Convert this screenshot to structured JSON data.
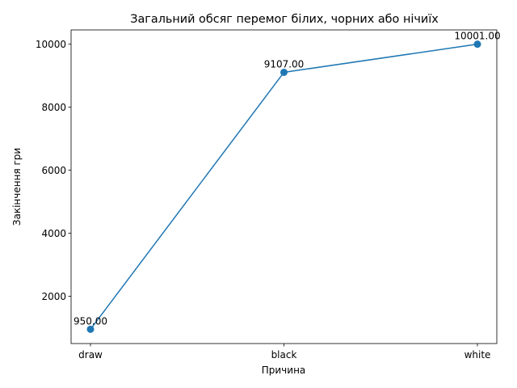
{
  "chart_data": {
    "type": "line",
    "title": "Загальний обсяг перемог білих, чорних або нічиїх",
    "xlabel": "Причина",
    "ylabel": "Закінчення гри",
    "categories": [
      "draw",
      "black",
      "white"
    ],
    "series": [
      {
        "values": [
          950.0,
          9107.0,
          10001.0
        ],
        "color": "#1f77b4"
      }
    ],
    "data_labels": [
      "950.00",
      "9107.00",
      "10001.00"
    ],
    "yticks": [
      2000,
      4000,
      6000,
      8000,
      10000
    ],
    "ylim": [
      497.45,
      10453.55
    ],
    "grid": false,
    "legend": "none"
  }
}
